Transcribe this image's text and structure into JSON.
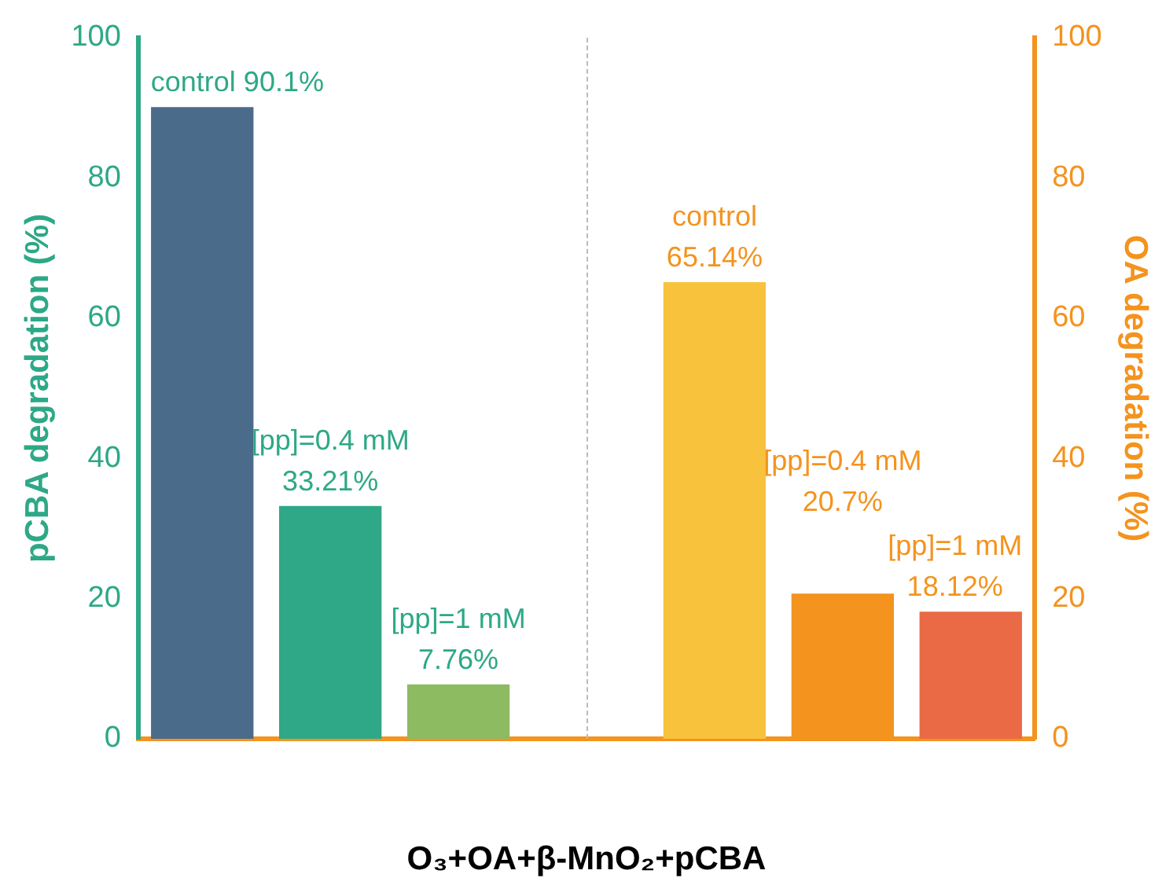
{
  "chart_data": {
    "type": "bar",
    "xlabel": "O₃+OA+β-MnO₂+pCBA",
    "ylabel": "pCBA degradation (%)",
    "y2label": "OA degradation (%)",
    "categories": [
      null,
      null,
      null,
      null,
      null,
      null,
      null
    ],
    "series": [
      {
        "colors": [
          "#4a6b8a",
          "#2ea886",
          "#8cbb62",
          null,
          null,
          null,
          null
        ],
        "values": [
          90.1,
          33.21,
          7.76,
          null,
          null,
          null,
          null
        ],
        "value_labels": [
          "control 90.1%",
          "[pp]=0.4 mM\n33.21%",
          "[pp]=1 mM\n7.76%",
          null,
          null,
          null,
          null
        ]
      },
      {
        "axis": "y2",
        "colors": [
          null,
          null,
          null,
          null,
          "#f8c23c",
          "#f4931e",
          "#e96a45"
        ],
        "values": [
          null,
          null,
          null,
          null,
          65.14,
          20.7,
          18.12
        ],
        "value_labels": [
          null,
          null,
          null,
          null,
          "control\n65.14%",
          "[pp]=0.4 mM\n20.7%",
          "[pp]=1 mM\n18.12%"
        ]
      }
    ],
    "ylim": [
      0,
      100
    ],
    "yticks": [
      0,
      20,
      40,
      60,
      80,
      100
    ],
    "y2lim": [
      0,
      100
    ],
    "y2ticks": [
      0,
      20,
      40,
      60,
      80,
      100
    ],
    "grid": false,
    "legend": false
  }
}
